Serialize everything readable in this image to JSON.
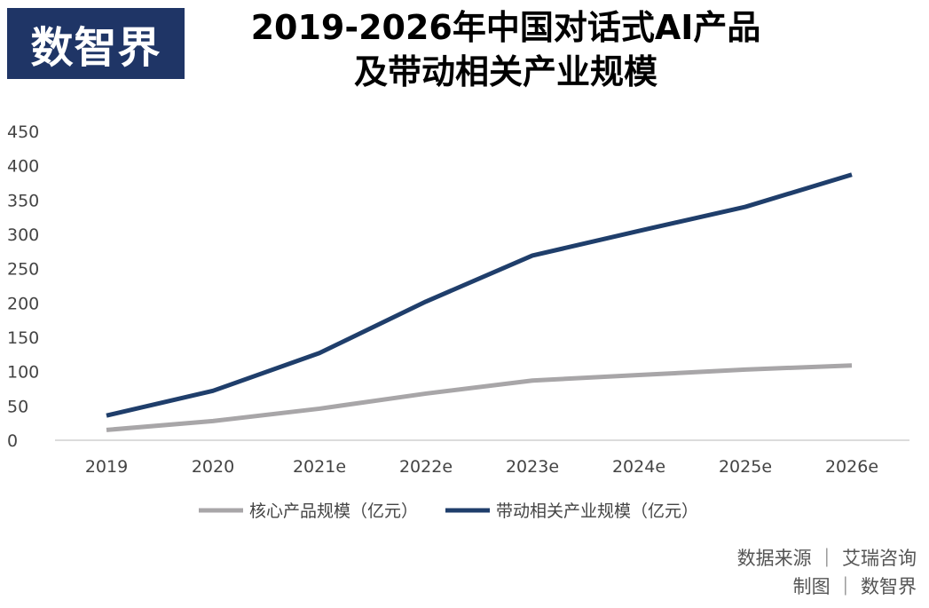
{
  "logo_text": "数智界",
  "title_line1": "2019-2026年中国对话式AI产品",
  "title_line2": "及带动相关产业规模",
  "source_line1": "数据来源 ｜ 艾瑞咨询",
  "source_line2": "制图 ｜ 数智界",
  "colors": {
    "logo_bg": "#1f3566",
    "core": "#a8a6a8",
    "related": "#1f3e6b"
  },
  "chart_data": {
    "type": "line",
    "title": "2019-2026年中国对话式AI产品及带动相关产业规模",
    "categories": [
      "2019",
      "2020",
      "2021e",
      "2022e",
      "2023e",
      "2024e",
      "2025e",
      "2026e"
    ],
    "series": [
      {
        "name": "核心产品规模（亿元）",
        "color": "#a8a6a8",
        "values": [
          15,
          28,
          46,
          68,
          87,
          95,
          103,
          109
        ]
      },
      {
        "name": "带动相关产业规模（亿元）",
        "color": "#1f3e6b",
        "values": [
          36,
          72,
          127,
          202,
          269,
          305,
          340,
          387
        ]
      }
    ],
    "yticks": [
      0,
      50,
      100,
      150,
      200,
      250,
      300,
      350,
      400,
      450
    ],
    "ylim": [
      0,
      450
    ],
    "grid": false,
    "legend_position": "bottom"
  }
}
